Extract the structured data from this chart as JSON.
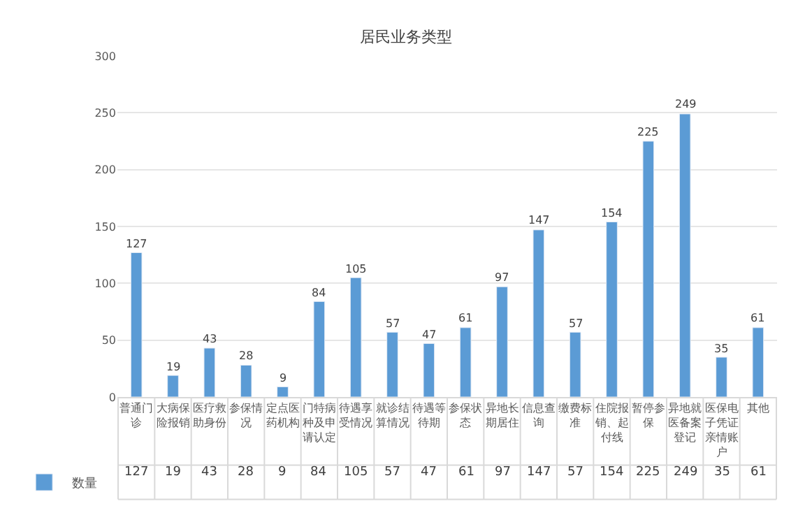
{
  "chart_data": {
    "type": "bar",
    "title": "居民业务类型",
    "categories": [
      "普通门诊",
      "大病保险报销",
      "医疗救助身份",
      "参保情况",
      "定点医药机构",
      "门特病种及申请认定",
      "待遇享受情况",
      "就诊结算情况",
      "待遇等待期",
      "参保状态",
      "异地长期居住",
      "信息查询",
      "缴费标准",
      "住院报销、起付线",
      "暂停参保",
      "异地就医备案登记",
      "医保电子凭证亲情账户",
      "其他"
    ],
    "series": [
      {
        "name": "数量",
        "color": "#5b9bd5",
        "values": [
          127,
          19,
          43,
          28,
          9,
          84,
          105,
          57,
          47,
          61,
          97,
          147,
          57,
          154,
          225,
          249,
          35,
          61
        ],
        "value_labels": [
          "127",
          "19",
          "43",
          "28",
          "9",
          "84",
          "105",
          "57",
          "47",
          "61",
          "97",
          "147",
          "57",
          "154",
          "225",
          "249",
          "35",
          "61"
        ]
      }
    ],
    "ylim": [
      0,
      300
    ],
    "yticks": [
      0,
      50,
      100,
      150,
      200,
      250,
      300
    ],
    "grid": "y",
    "legend": "bottom left",
    "data_labels": true
  }
}
